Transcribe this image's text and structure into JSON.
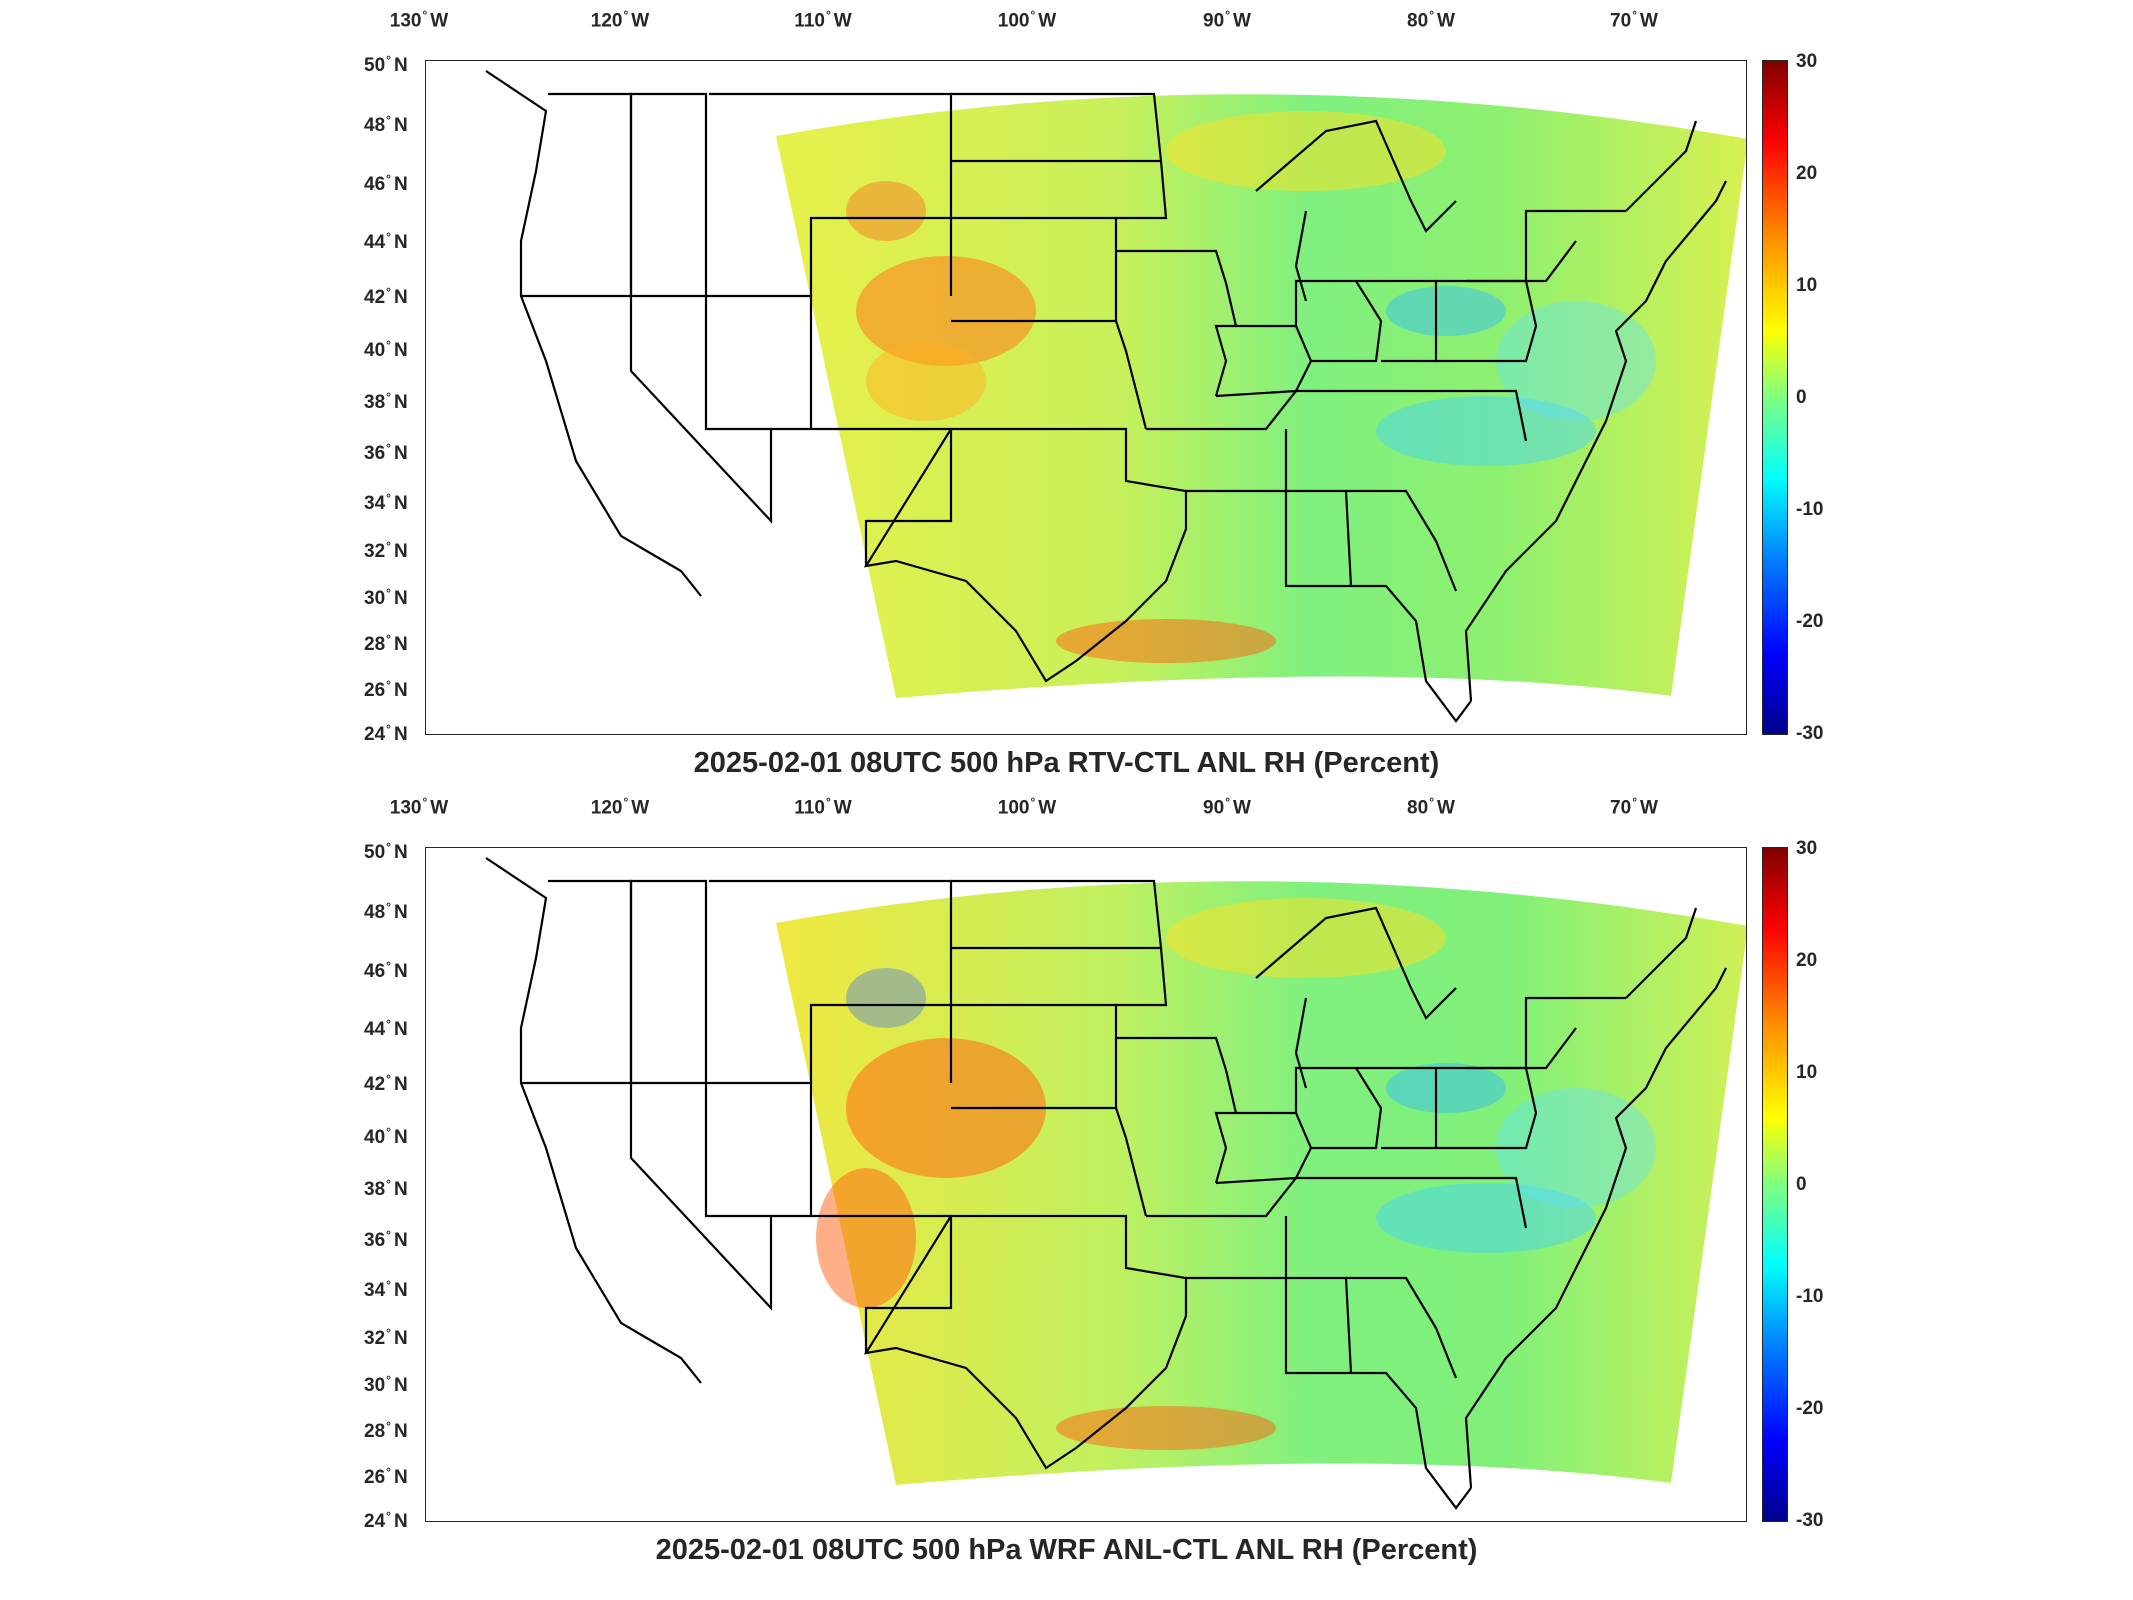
{
  "panels": [
    {
      "title": "2025-02-01 08UTC 500 hPa RTV-CTL ANL RH (Percent)",
      "lon_labels": [
        "130",
        "120",
        "110",
        "100",
        "90",
        "80",
        "70"
      ],
      "lon_suffix": "W",
      "lat_labels": [
        "50",
        "48",
        "46",
        "44",
        "42",
        "40",
        "38",
        "36",
        "34",
        "32",
        "30",
        "28",
        "26",
        "24"
      ],
      "lat_suffix": "N",
      "colorbar_ticks": [
        "30",
        "20",
        "10",
        "0",
        "-10",
        "-20",
        "-30"
      ]
    },
    {
      "title": "2025-02-01 08UTC 500 hPa WRF ANL-CTL ANL RH (Percent)",
      "lon_labels": [
        "130",
        "120",
        "110",
        "100",
        "90",
        "80",
        "70"
      ],
      "lon_suffix": "W",
      "lat_labels": [
        "50",
        "48",
        "46",
        "44",
        "42",
        "40",
        "38",
        "36",
        "34",
        "32",
        "30",
        "28",
        "26",
        "24"
      ],
      "lat_suffix": "N",
      "colorbar_ticks": [
        "30",
        "20",
        "10",
        "0",
        "-10",
        "-20",
        "-30"
      ]
    }
  ],
  "colorbar": {
    "min": -30,
    "max": 30,
    "colormap": "jet"
  },
  "map_extent": {
    "lon_min": -131,
    "lon_max": -65,
    "lat_min": 24,
    "lat_max": 50
  },
  "colors": {
    "background": "#ffffff",
    "border": "#000000",
    "text": "#262626"
  }
}
